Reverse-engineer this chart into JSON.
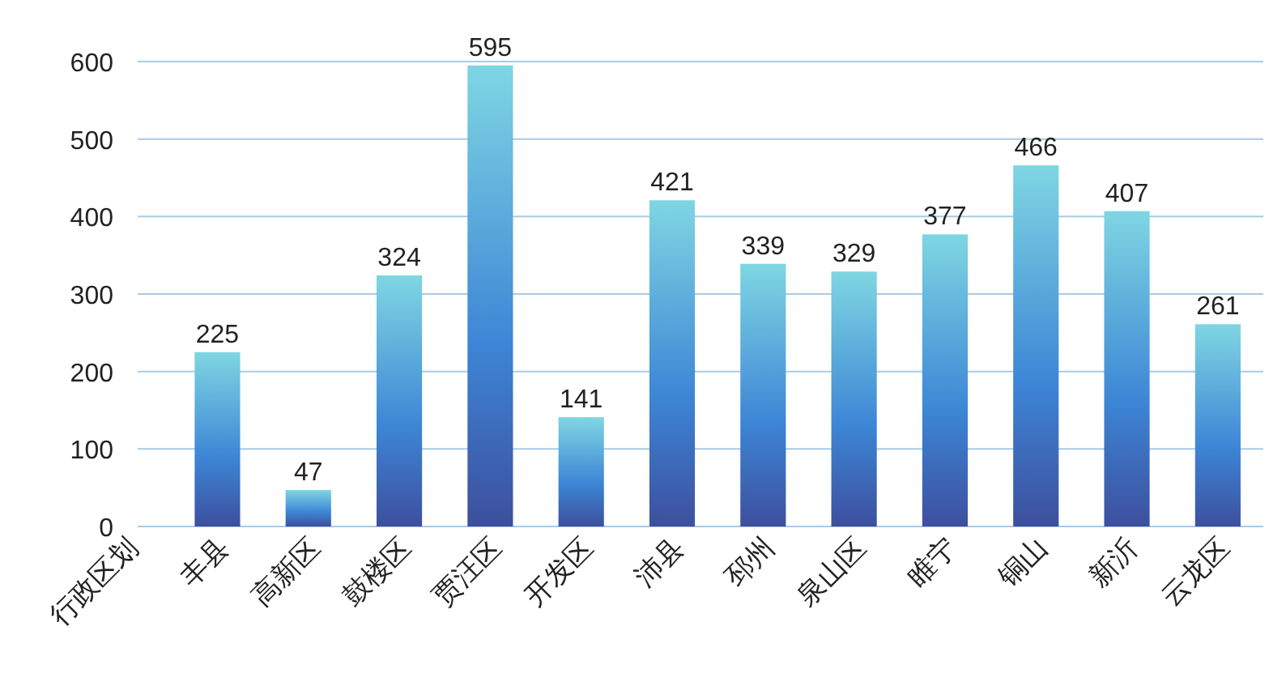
{
  "chart_data": {
    "type": "bar",
    "categories": [
      "行政区划",
      "丰县",
      "高新区",
      "鼓楼区",
      "贾汪区",
      "开发区",
      "沛县",
      "邳州",
      "泉山区",
      "睢宁",
      "铜山",
      "新沂",
      "云龙区"
    ],
    "values": [
      null,
      225,
      47,
      324,
      595,
      141,
      421,
      339,
      329,
      377,
      466,
      407,
      261
    ],
    "color": "#3d4f9e",
    "ylim": [
      0,
      600
    ],
    "yticks": [
      0,
      100,
      200,
      300,
      400,
      500,
      600
    ],
    "grid": "y",
    "data_labels": true
  }
}
